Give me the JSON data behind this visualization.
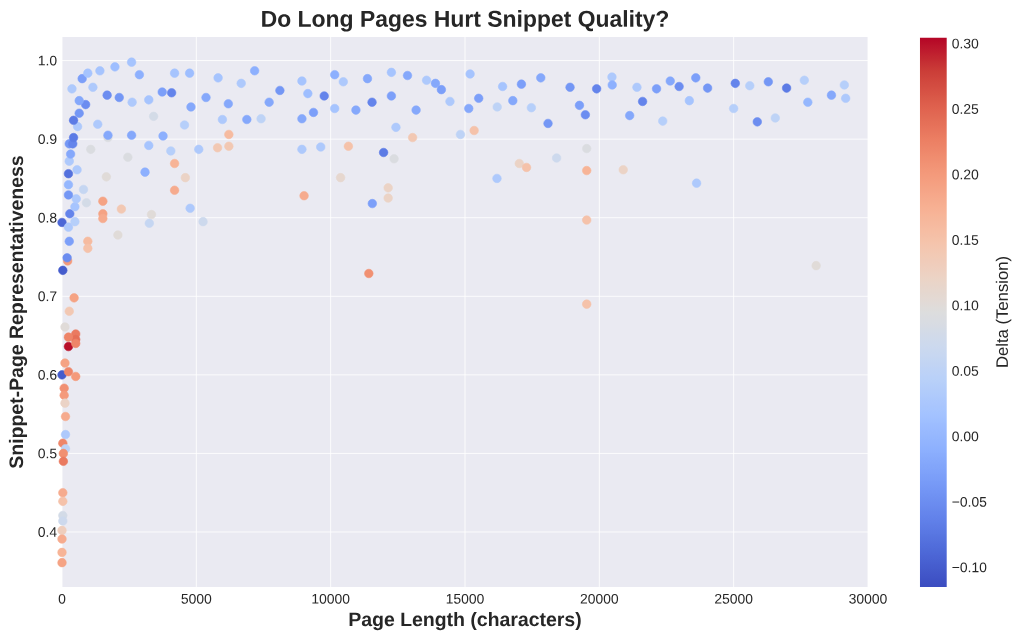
{
  "chart_data": {
    "type": "scatter",
    "title": "Do Long Pages Hurt Snippet Quality?",
    "xlabel": "Page Length (characters)",
    "ylabel": "Snippet-Page Representativeness",
    "clabel": "Delta (Tension)",
    "x": [
      0,
      30,
      0,
      240,
      510,
      510,
      510,
      240,
      110,
      450,
      270,
      110,
      240,
      510,
      80,
      80,
      110,
      130,
      130,
      30,
      130,
      50,
      50,
      30,
      30,
      30,
      30,
      0,
      0,
      0,
      0,
      210,
      190,
      270,
      240,
      290,
      480,
      480,
      530,
      910,
      800,
      240,
      240,
      240,
      560,
      270,
      320,
      1070,
      270,
      400,
      430,
      580,
      430,
      640,
      880,
      640,
      370,
      750,
      1520,
      1520,
      1520,
      960,
      960,
      2080,
      2210,
      1650,
      3250,
      3330,
      3090,
      2450,
      1710,
      3230,
      4190,
      4190,
      4590,
      4770,
      5250,
      4050,
      5090,
      5790,
      6210,
      6210,
      9010,
      8930,
      9630,
      2590,
      1970,
      1410,
      960,
      1680,
      2130,
      1150,
      2880,
      2610,
      3230,
      3410,
      3730,
      4080,
      4190,
      4750,
      4800,
      5360,
      5810,
      6190,
      6670,
      7170,
      7410,
      7710,
      8110,
      8930,
      9150,
      9760,
      1330,
      1710,
      2590,
      3760,
      4560,
      5970,
      6880,
      8930,
      9360,
      10150,
      10470,
      10150,
      10940,
      11540,
      11370,
      12260,
      12260,
      12860,
      13180,
      13570,
      13900,
      14120,
      14440,
      15190,
      15140,
      15510,
      16200,
      16400,
      16780,
      17100,
      17470,
      17820,
      18090,
      18910,
      19260,
      19480,
      19900,
      20470,
      10370,
      10660,
      11420,
      11550,
      11970,
      12140,
      12140,
      12360,
      13050,
      15340,
      16190,
      17020,
      17290,
      18410,
      19530,
      19530,
      19530,
      19530,
      12430,
      14830,
      20890,
      23620,
      28070,
      21130,
      20480,
      21400,
      21610,
      22130,
      22360,
      22640,
      22970,
      23350,
      23590,
      24030,
      25000,
      25060,
      25600,
      25880,
      26290,
      26550,
      26970,
      27630,
      27760,
      28640,
      29120,
      29170
    ],
    "values": [
      0.794,
      0.733,
      0.6,
      0.636,
      0.652,
      0.645,
      0.64,
      0.648,
      0.661,
      0.698,
      0.681,
      0.615,
      0.604,
      0.598,
      0.583,
      0.574,
      0.564,
      0.547,
      0.524,
      0.513,
      0.506,
      0.5,
      0.49,
      0.45,
      0.439,
      0.421,
      0.414,
      0.402,
      0.391,
      0.374,
      0.361,
      0.745,
      0.749,
      0.77,
      0.788,
      0.805,
      0.795,
      0.814,
      0.824,
      0.819,
      0.836,
      0.829,
      0.842,
      0.856,
      0.861,
      0.872,
      0.881,
      0.887,
      0.894,
      0.894,
      0.902,
      0.916,
      0.924,
      0.933,
      0.944,
      0.949,
      0.964,
      0.977,
      0.821,
      0.805,
      0.799,
      0.77,
      0.761,
      0.778,
      0.811,
      0.852,
      0.793,
      0.804,
      0.858,
      0.877,
      0.902,
      0.892,
      0.869,
      0.835,
      0.851,
      0.812,
      0.795,
      0.885,
      0.887,
      0.889,
      0.906,
      0.891,
      0.828,
      0.887,
      0.89,
      0.998,
      0.992,
      0.987,
      0.984,
      0.956,
      0.953,
      0.966,
      0.982,
      0.947,
      0.95,
      0.929,
      0.96,
      0.959,
      0.984,
      0.984,
      0.941,
      0.953,
      0.978,
      0.945,
      0.971,
      0.987,
      0.926,
      0.947,
      0.962,
      0.974,
      0.958,
      0.955,
      0.919,
      0.905,
      0.905,
      0.904,
      0.918,
      0.925,
      0.925,
      0.926,
      0.934,
      0.982,
      0.973,
      0.939,
      0.937,
      0.947,
      0.977,
      0.985,
      0.955,
      0.981,
      0.937,
      0.975,
      0.971,
      0.963,
      0.948,
      0.983,
      0.939,
      0.952,
      0.941,
      0.967,
      0.949,
      0.97,
      0.94,
      0.978,
      0.92,
      0.966,
      0.943,
      0.931,
      0.964,
      0.979,
      0.851,
      0.891,
      0.729,
      0.818,
      0.883,
      0.838,
      0.825,
      0.875,
      0.902,
      0.911,
      0.85,
      0.869,
      0.864,
      0.876,
      0.797,
      0.69,
      0.86,
      0.888,
      0.915,
      0.906,
      0.861,
      0.844,
      0.739,
      0.93,
      0.969,
      0.966,
      0.948,
      0.964,
      0.923,
      0.974,
      0.967,
      0.949,
      0.978,
      0.965,
      0.939,
      0.971,
      0.968,
      0.922,
      0.973,
      0.927,
      0.965,
      0.975,
      0.947,
      0.956,
      0.969,
      0.952
    ],
    "cvalues": [
      -0.09,
      -0.1,
      -0.1,
      0.3,
      0.23,
      0.24,
      0.22,
      0.22,
      0.1,
      0.19,
      0.14,
      0.19,
      0.22,
      0.2,
      0.21,
      0.2,
      0.12,
      0.18,
      0.03,
      0.22,
      0.05,
      0.21,
      0.23,
      0.18,
      0.15,
      0.08,
      0.07,
      0.13,
      0.18,
      0.17,
      0.19,
      0.2,
      -0.05,
      -0.03,
      0.03,
      -0.06,
      0.04,
      0.02,
      0.03,
      0.08,
      0.06,
      -0.04,
      0.0,
      -0.08,
      0.03,
      0.03,
      -0.02,
      0.09,
      -0.04,
      -0.06,
      -0.07,
      0.03,
      -0.07,
      -0.04,
      -0.05,
      -0.02,
      0.03,
      -0.03,
      0.19,
      0.19,
      0.18,
      0.16,
      0.15,
      0.1,
      0.14,
      0.1,
      0.06,
      0.1,
      -0.01,
      0.09,
      0.09,
      0.02,
      0.17,
      0.18,
      0.12,
      0.03,
      0.07,
      0.04,
      0.03,
      0.14,
      0.16,
      0.14,
      0.18,
      0.03,
      0.03,
      0.02,
      0.01,
      0.02,
      0.02,
      -0.05,
      -0.04,
      0.03,
      -0.01,
      0.03,
      0.02,
      0.08,
      -0.03,
      -0.06,
      0.02,
      0.01,
      -0.02,
      -0.02,
      0.02,
      -0.02,
      0.03,
      -0.01,
      0.05,
      -0.02,
      -0.04,
      0.02,
      0.01,
      -0.06,
      0.03,
      -0.02,
      -0.02,
      -0.01,
      0.04,
      0.03,
      -0.02,
      -0.02,
      -0.03,
      -0.01,
      0.03,
      0.02,
      -0.02,
      -0.06,
      -0.02,
      0.02,
      -0.03,
      -0.02,
      -0.02,
      0.03,
      -0.02,
      -0.03,
      0.03,
      0.02,
      -0.02,
      -0.03,
      0.05,
      0.02,
      -0.02,
      -0.03,
      0.04,
      -0.02,
      -0.04,
      -0.04,
      -0.03,
      -0.05,
      -0.06,
      0.03,
      0.11,
      0.15,
      0.21,
      -0.03,
      -0.07,
      0.12,
      0.12,
      0.09,
      0.14,
      0.15,
      0.03,
      0.12,
      0.15,
      0.07,
      0.15,
      0.15,
      0.17,
      0.09,
      0.03,
      0.05,
      0.12,
      0.03,
      0.1,
      -0.02,
      -0.01,
      0.03,
      -0.06,
      -0.03,
      0.04,
      -0.02,
      -0.05,
      0.02,
      -0.03,
      -0.04,
      0.04,
      -0.06,
      0.04,
      -0.05,
      -0.04,
      0.05,
      -0.07,
      0.04,
      0.0,
      -0.02,
      0.04,
      0.03
    ],
    "xlim": [
      0,
      30000
    ],
    "ylim": [
      0.33,
      1.03
    ],
    "xticks": [
      0,
      5000,
      10000,
      15000,
      20000,
      25000,
      30000
    ],
    "yticks": [
      0.4,
      0.5,
      0.6,
      0.7,
      0.8,
      0.9,
      {
        "value": 1.0,
        "label": "1.0"
      }
    ],
    "clim": [
      -0.115,
      0.305
    ],
    "cticks": [
      {
        "value": -0.1,
        "label": "−0.10"
      },
      {
        "value": -0.05,
        "label": "−0.05"
      },
      {
        "value": 0.0,
        "label": "0.00"
      },
      0.05,
      {
        "value": 0.1,
        "label": "0.10"
      },
      0.15,
      {
        "value": 0.2,
        "label": "0.20"
      },
      0.25,
      {
        "value": 0.3,
        "label": "0.30"
      }
    ],
    "grid": true,
    "marker": "circle"
  }
}
